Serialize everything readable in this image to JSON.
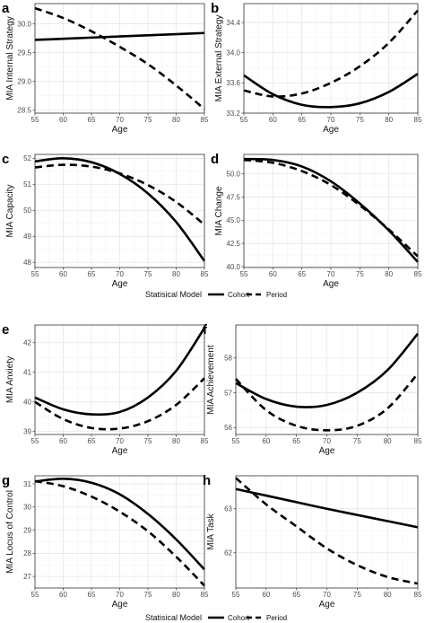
{
  "chart_data": [
    {
      "type": "line",
      "panel_label": "a",
      "xlabel": "Age",
      "ylabel": "MIA Internal Strategy",
      "xlim": [
        55,
        85
      ],
      "ylim": [
        28.45,
        30.35
      ],
      "xticks": [
        55,
        60,
        65,
        70,
        75,
        80,
        85
      ],
      "yticks": [
        28.5,
        29.0,
        29.5,
        30.0
      ],
      "series": [
        {
          "name": "Cohort",
          "dash": "solid",
          "x": [
            55,
            60,
            65,
            70,
            75,
            80,
            85
          ],
          "y": [
            29.72,
            29.74,
            29.76,
            29.78,
            29.8,
            29.82,
            29.84
          ]
        },
        {
          "name": "Period",
          "dash": "dashed",
          "x": [
            55,
            60,
            65,
            70,
            75,
            80,
            85
          ],
          "y": [
            30.27,
            30.1,
            29.87,
            29.6,
            29.3,
            28.93,
            28.52
          ]
        }
      ]
    },
    {
      "type": "line",
      "panel_label": "b",
      "xlabel": "Age",
      "ylabel": "MIA External Strategy",
      "xlim": [
        55,
        85
      ],
      "ylim": [
        33.2,
        34.65
      ],
      "xticks": [
        55,
        60,
        65,
        70,
        75,
        80,
        85
      ],
      "yticks": [
        33.2,
        33.6,
        34.0,
        34.4
      ],
      "series": [
        {
          "name": "Cohort",
          "dash": "solid",
          "x": [
            55,
            60,
            65,
            70,
            75,
            80,
            85
          ],
          "y": [
            33.7,
            33.45,
            33.31,
            33.28,
            33.33,
            33.48,
            33.72
          ]
        },
        {
          "name": "Period",
          "dash": "dashed",
          "x": [
            55,
            60,
            65,
            70,
            75,
            80,
            85
          ],
          "y": [
            33.5,
            33.42,
            33.46,
            33.6,
            33.82,
            34.13,
            34.56
          ]
        }
      ]
    },
    {
      "type": "line",
      "panel_label": "c",
      "xlabel": "Age",
      "ylabel": "MIA Capacity",
      "xlim": [
        55,
        85
      ],
      "ylim": [
        47.8,
        52.15
      ],
      "xticks": [
        55,
        60,
        65,
        70,
        75,
        80,
        85
      ],
      "yticks": [
        48,
        49,
        50,
        51,
        52
      ],
      "series": [
        {
          "name": "Cohort",
          "dash": "solid",
          "x": [
            55,
            60,
            65,
            70,
            75,
            80,
            85
          ],
          "y": [
            51.88,
            52.0,
            51.85,
            51.4,
            50.65,
            49.55,
            48.05
          ]
        },
        {
          "name": "Period",
          "dash": "dashed",
          "x": [
            55,
            60,
            65,
            70,
            75,
            80,
            85
          ],
          "y": [
            51.65,
            51.75,
            51.68,
            51.42,
            50.97,
            50.32,
            49.45
          ]
        }
      ]
    },
    {
      "type": "line",
      "panel_label": "d",
      "xlabel": "Age",
      "ylabel": "MIA Change",
      "xlim": [
        55,
        85
      ],
      "ylim": [
        39.9,
        52.1
      ],
      "xticks": [
        55,
        60,
        65,
        70,
        75,
        80,
        85
      ],
      "yticks": [
        40.0,
        42.5,
        45.0,
        47.5,
        50.0
      ],
      "series": [
        {
          "name": "Cohort",
          "dash": "solid",
          "x": [
            55,
            60,
            65,
            70,
            75,
            80,
            85
          ],
          "y": [
            51.6,
            51.5,
            50.8,
            49.2,
            46.8,
            43.9,
            40.5
          ]
        },
        {
          "name": "Period",
          "dash": "dashed",
          "x": [
            55,
            60,
            65,
            70,
            75,
            80,
            85
          ],
          "y": [
            51.5,
            51.2,
            50.3,
            48.8,
            46.6,
            44.0,
            41.1
          ]
        }
      ]
    },
    {
      "type": "line",
      "panel_label": "e",
      "xlabel": "Age",
      "ylabel": "MIA Anxiety",
      "xlim": [
        55,
        85
      ],
      "ylim": [
        38.9,
        42.6
      ],
      "xticks": [
        55,
        60,
        65,
        70,
        75,
        80,
        85
      ],
      "yticks": [
        39,
        40,
        41,
        42
      ],
      "series": [
        {
          "name": "Cohort",
          "dash": "solid",
          "x": [
            55,
            60,
            65,
            70,
            75,
            80,
            85
          ],
          "y": [
            40.15,
            39.75,
            39.58,
            39.66,
            40.15,
            41.05,
            42.5
          ]
        },
        {
          "name": "Period",
          "dash": "dashed",
          "x": [
            55,
            60,
            65,
            70,
            75,
            80,
            85
          ],
          "y": [
            40.0,
            39.42,
            39.12,
            39.1,
            39.35,
            39.9,
            40.8
          ]
        }
      ]
    },
    {
      "type": "line",
      "panel_label": "f",
      "xlabel": "Age",
      "ylabel": "MIA Achievement",
      "xlim": [
        55,
        85
      ],
      "ylim": [
        55.8,
        58.95
      ],
      "xticks": [
        55,
        60,
        65,
        70,
        75,
        80,
        85
      ],
      "yticks": [
        56,
        57,
        58
      ],
      "series": [
        {
          "name": "Cohort",
          "dash": "solid",
          "x": [
            55,
            60,
            65,
            70,
            75,
            80,
            85
          ],
          "y": [
            57.28,
            56.82,
            56.6,
            56.65,
            57.0,
            57.65,
            58.7
          ]
        },
        {
          "name": "Period",
          "dash": "dashed",
          "x": [
            55,
            60,
            65,
            70,
            75,
            80,
            85
          ],
          "y": [
            57.4,
            56.5,
            56.05,
            55.92,
            56.05,
            56.55,
            57.55
          ]
        }
      ]
    },
    {
      "type": "line",
      "panel_label": "g",
      "xlabel": "Age",
      "ylabel": "MIA Locus of Control",
      "xlim": [
        55,
        85
      ],
      "ylim": [
        26.5,
        31.35
      ],
      "xticks": [
        55,
        60,
        65,
        70,
        75,
        80,
        85
      ],
      "yticks": [
        27,
        28,
        29,
        30,
        31
      ],
      "series": [
        {
          "name": "Cohort",
          "dash": "solid",
          "x": [
            55,
            60,
            65,
            70,
            75,
            80,
            85
          ],
          "y": [
            31.1,
            31.22,
            31.05,
            30.55,
            29.7,
            28.6,
            27.3
          ]
        },
        {
          "name": "Period",
          "dash": "dashed",
          "x": [
            55,
            60,
            65,
            70,
            75,
            80,
            85
          ],
          "y": [
            31.12,
            30.9,
            30.45,
            29.8,
            28.95,
            27.85,
            26.6
          ]
        }
      ]
    },
    {
      "type": "line",
      "panel_label": "h",
      "xlabel": "Age",
      "ylabel": "MIA Task",
      "xlim": [
        55,
        85
      ],
      "ylim": [
        61.2,
        63.75
      ],
      "xticks": [
        55,
        60,
        65,
        70,
        75,
        80,
        85
      ],
      "yticks": [
        62,
        63
      ],
      "series": [
        {
          "name": "Cohort",
          "dash": "solid",
          "x": [
            55,
            60,
            65,
            70,
            75,
            80,
            85
          ],
          "y": [
            63.45,
            63.3,
            63.15,
            63.0,
            62.86,
            62.72,
            62.58
          ]
        },
        {
          "name": "Period",
          "dash": "dashed",
          "x": [
            55,
            60,
            65,
            70,
            75,
            80,
            85
          ],
          "y": [
            63.7,
            63.1,
            62.6,
            62.1,
            61.72,
            61.45,
            61.3
          ]
        }
      ]
    }
  ],
  "legends": [
    {
      "title": "Statisical Model",
      "items": [
        "Cohort",
        "Period"
      ]
    },
    {
      "title": "Statisical Model",
      "items": [
        "Cohort",
        "Period"
      ]
    }
  ]
}
